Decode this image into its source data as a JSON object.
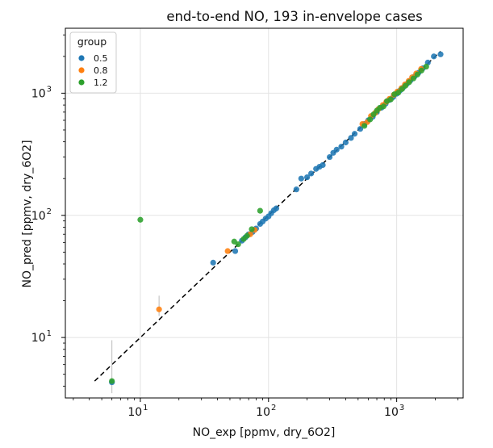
{
  "chart_data": {
    "type": "scatter",
    "title": "end-to-end NO, 193 in-envelope cases",
    "xlabel": "NO_exp [ppmv, dry_6O2]",
    "ylabel": "NO_pred [ppmv, dry_6O2]",
    "xscale": "log",
    "yscale": "log",
    "xlim": [
      2.6,
      3300
    ],
    "ylim": [
      3.2,
      3400
    ],
    "x_major_ticks": [
      10,
      100,
      1000
    ],
    "y_major_ticks": [
      10,
      100,
      1000
    ],
    "x_tick_labels": [
      {
        "base": "10",
        "exp": "1"
      },
      {
        "base": "10",
        "exp": "2"
      },
      {
        "base": "10",
        "exp": "3"
      }
    ],
    "y_tick_labels": [
      {
        "base": "10",
        "exp": "1"
      },
      {
        "base": "10",
        "exp": "2"
      },
      {
        "base": "10",
        "exp": "3"
      }
    ],
    "grid": true,
    "legend": {
      "title": "group",
      "position": "top-left"
    },
    "reference_line": {
      "style": "dashed",
      "color": "#000000",
      "x_range": [
        4.4,
        2200
      ],
      "description": "y = x parity line"
    },
    "series": [
      {
        "name": "0.5",
        "color": "#1f77b4",
        "points": [
          [
            6,
            4.3
          ],
          [
            37,
            41
          ],
          [
            55,
            51
          ],
          [
            62,
            62
          ],
          [
            66,
            66
          ],
          [
            70,
            70
          ],
          [
            75,
            73
          ],
          [
            80,
            78
          ],
          [
            86,
            85
          ],
          [
            90,
            89
          ],
          [
            95,
            94
          ],
          [
            100,
            98
          ],
          [
            105,
            104
          ],
          [
            110,
            110
          ],
          [
            115,
            114
          ],
          [
            165,
            163
          ],
          [
            180,
            200
          ],
          [
            200,
            205
          ],
          [
            215,
            220
          ],
          [
            235,
            240
          ],
          [
            250,
            250
          ],
          [
            265,
            258
          ],
          [
            300,
            300
          ],
          [
            320,
            325
          ],
          [
            340,
            345
          ],
          [
            370,
            365
          ],
          [
            400,
            395
          ],
          [
            440,
            430
          ],
          [
            470,
            465
          ],
          [
            520,
            510
          ],
          [
            560,
            560
          ],
          [
            600,
            600
          ],
          [
            650,
            640
          ],
          [
            700,
            700
          ],
          [
            760,
            760
          ],
          [
            820,
            820
          ],
          [
            880,
            880
          ],
          [
            940,
            930
          ],
          [
            1000,
            990
          ],
          [
            1060,
            1050
          ],
          [
            1120,
            1110
          ],
          [
            1200,
            1190
          ],
          [
            1280,
            1270
          ],
          [
            1380,
            1370
          ],
          [
            1480,
            1470
          ],
          [
            1600,
            1600
          ],
          [
            1750,
            1780
          ],
          [
            1950,
            2000
          ],
          [
            2200,
            2080
          ]
        ]
      },
      {
        "name": "0.8",
        "color": "#ff7f0e",
        "points": [
          [
            14,
            17
          ],
          [
            48,
            51
          ],
          [
            72,
            70
          ],
          [
            78,
            76
          ],
          [
            540,
            560
          ],
          [
            590,
            580
          ],
          [
            630,
            650
          ],
          [
            680,
            690
          ],
          [
            720,
            740
          ],
          [
            780,
            800
          ],
          [
            830,
            850
          ],
          [
            880,
            900
          ],
          [
            950,
            970
          ],
          [
            1010,
            1030
          ],
          [
            1090,
            1100
          ],
          [
            1160,
            1180
          ],
          [
            1240,
            1260
          ],
          [
            1320,
            1350
          ],
          [
            1420,
            1450
          ],
          [
            1550,
            1580
          ]
        ]
      },
      {
        "name": "1.2",
        "color": "#2ca02c",
        "points": [
          [
            6,
            4.4
          ],
          [
            10,
            92
          ],
          [
            54,
            61
          ],
          [
            58,
            58
          ],
          [
            64,
            64
          ],
          [
            68,
            68
          ],
          [
            74,
            77
          ],
          [
            86,
            109
          ],
          [
            560,
            540
          ],
          [
            620,
            610
          ],
          [
            660,
            670
          ],
          [
            700,
            720
          ],
          [
            740,
            760
          ],
          [
            790,
            780
          ],
          [
            840,
            860
          ],
          [
            900,
            890
          ],
          [
            960,
            980
          ],
          [
            1030,
            1010
          ],
          [
            1100,
            1080
          ],
          [
            1170,
            1150
          ],
          [
            1250,
            1230
          ],
          [
            1350,
            1320
          ],
          [
            1450,
            1420
          ],
          [
            1560,
            1530
          ],
          [
            1700,
            1650
          ]
        ]
      }
    ],
    "error_bars": [
      {
        "x": 6,
        "y_low": 3.5,
        "y_high": 9.5,
        "color": "#bbbbbb"
      },
      {
        "x": 14,
        "y_low": 15,
        "y_high": 22,
        "color": "#bbbbbb"
      }
    ]
  }
}
